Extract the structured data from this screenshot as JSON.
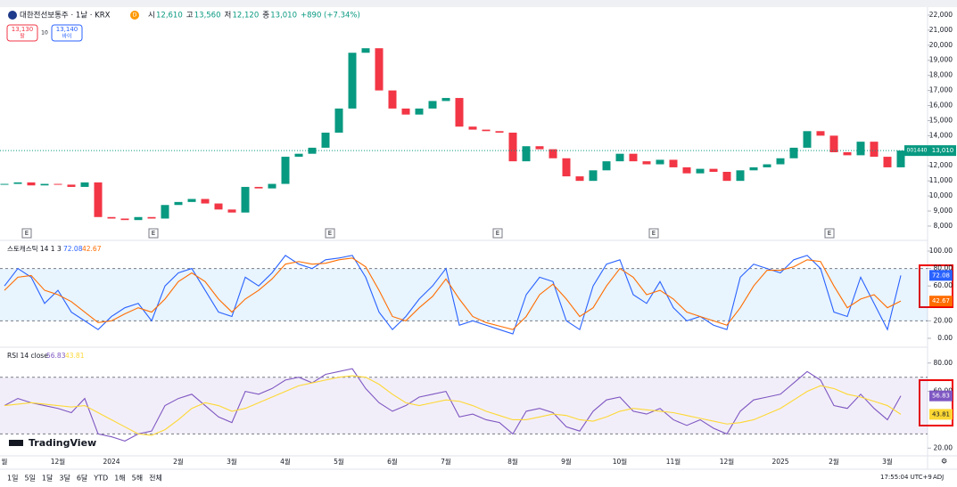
{
  "header": {
    "symbol": "대한전선보통주 · 1날 · KRX",
    "badge": "D",
    "ohlc": [
      {
        "label": "시",
        "value": "12,610"
      },
      {
        "label": "고",
        "value": "13,560"
      },
      {
        "label": "저",
        "value": "12,120"
      },
      {
        "label": "종",
        "value": "13,010"
      }
    ],
    "change": "+890 (+7.34%)",
    "sell": {
      "price": "13,130",
      "label": "팔"
    },
    "spread": "10",
    "buy": {
      "price": "13,140",
      "label": "바이"
    }
  },
  "chart_data": [
    {
      "type": "candlestick",
      "up_color": "#089981",
      "down_color": "#f23645",
      "categories": [
        "월",
        null,
        null,
        null,
        "12월",
        null,
        null,
        null,
        "2024",
        null,
        null,
        null,
        null,
        "2월",
        null,
        null,
        null,
        "3월",
        null,
        null,
        null,
        "4월",
        null,
        null,
        null,
        "5월",
        null,
        null,
        null,
        "6월",
        null,
        null,
        null,
        "7월",
        null,
        null,
        null,
        null,
        "8월",
        null,
        null,
        null,
        "9월",
        null,
        null,
        null,
        "10월",
        null,
        null,
        null,
        "11월",
        null,
        null,
        null,
        "12월",
        null,
        null,
        null,
        "2025",
        null,
        null,
        null,
        "2월",
        null,
        null,
        null,
        "3월",
        null
      ],
      "values": [
        10800,
        10900,
        10700,
        10800,
        10750,
        10600,
        10900,
        8600,
        8500,
        8400,
        8600,
        8500,
        9400,
        9600,
        9800,
        9500,
        9100,
        8900,
        10600,
        10500,
        10800,
        12600,
        12800,
        13200,
        14200,
        15800,
        19500,
        19800,
        17000,
        15800,
        15400,
        15800,
        16300,
        16500,
        14600,
        14400,
        14300,
        14200,
        12300,
        13300,
        13100,
        12500,
        11300,
        11000,
        11700,
        12300,
        12800,
        12300,
        12100,
        12400,
        11900,
        11500,
        11800,
        11600,
        11000,
        11700,
        11900,
        12100,
        12500,
        13200,
        14300,
        14000,
        12900,
        12700,
        13600,
        12600,
        11900,
        13010
      ],
      "ylim": [
        7170,
        22410
      ],
      "yticks": [
        {
          "value": 8000,
          "label": "8,000"
        },
        {
          "value": 9000,
          "label": "9,000"
        },
        {
          "value": 10000,
          "label": "10,000"
        },
        {
          "value": 11000,
          "label": "11,000"
        },
        {
          "value": 12000,
          "label": "12,000"
        },
        {
          "value": 13000,
          "label": "13,000"
        },
        {
          "value": 14000,
          "label": "14,000"
        },
        {
          "value": 15000,
          "label": "15,000"
        },
        {
          "value": 16000,
          "label": "16,000"
        },
        {
          "value": 17000,
          "label": "17,000"
        },
        {
          "value": 18000,
          "label": "18,000"
        },
        {
          "value": 19000,
          "label": "19,000"
        },
        {
          "value": 20000,
          "label": "20,000"
        },
        {
          "value": 21000,
          "label": "21,000"
        },
        {
          "value": 22000,
          "label": "22,000"
        }
      ],
      "last_price": {
        "value": 13010,
        "label": "13,010",
        "ticker": "001440"
      }
    },
    {
      "type": "line",
      "title": "스토캐스틱 14 1 3",
      "band_color": "#2196f3",
      "series": [
        {
          "color": "#2962ff",
          "values": [
            60,
            80,
            70,
            40,
            55,
            30,
            20,
            10,
            25,
            35,
            40,
            20,
            60,
            75,
            80,
            55,
            30,
            25,
            70,
            60,
            75,
            95,
            85,
            80,
            90,
            92,
            95,
            70,
            30,
            10,
            25,
            45,
            60,
            80,
            15,
            20,
            15,
            10,
            5,
            50,
            70,
            65,
            20,
            10,
            60,
            85,
            90,
            50,
            40,
            65,
            35,
            20,
            25,
            15,
            10,
            70,
            85,
            80,
            75,
            90,
            95,
            80,
            30,
            25,
            70,
            40,
            10,
            72.08
          ]
        },
        {
          "color": "#ff6d00",
          "values": [
            55,
            70,
            72,
            55,
            50,
            42,
            30,
            18,
            20,
            28,
            35,
            30,
            45,
            65,
            75,
            65,
            45,
            30,
            45,
            55,
            68,
            85,
            88,
            85,
            86,
            90,
            92,
            82,
            55,
            25,
            20,
            35,
            48,
            68,
            45,
            25,
            18,
            14,
            10,
            25,
            50,
            62,
            45,
            25,
            35,
            60,
            80,
            70,
            50,
            55,
            45,
            30,
            25,
            20,
            15,
            35,
            60,
            78,
            78,
            82,
            90,
            88,
            60,
            35,
            45,
            50,
            35,
            42.67
          ]
        }
      ],
      "ylim": [
        -8.2,
        110.2
      ],
      "bands": [
        20,
        80
      ],
      "yticks": [
        {
          "value": 0,
          "label": "0.00"
        },
        {
          "value": 20,
          "label": "20.00"
        },
        {
          "value": 60,
          "label": "60.00"
        },
        {
          "value": 80,
          "label": "80.00"
        },
        {
          "value": 100,
          "label": "100.00"
        }
      ]
    },
    {
      "type": "line",
      "title": "RSI 14 close",
      "band_color": "#7e57c2",
      "series": [
        {
          "color": "#7e57c2",
          "values": [
            50,
            55,
            52,
            50,
            48,
            45,
            55,
            30,
            28,
            25,
            30,
            32,
            50,
            55,
            58,
            50,
            42,
            38,
            60,
            58,
            62,
            68,
            70,
            66,
            72,
            74,
            76,
            62,
            52,
            46,
            50,
            56,
            58,
            60,
            42,
            44,
            40,
            38,
            30,
            46,
            48,
            45,
            35,
            32,
            46,
            54,
            56,
            46,
            44,
            48,
            40,
            36,
            40,
            34,
            30,
            46,
            54,
            56,
            58,
            66,
            74,
            68,
            50,
            48,
            58,
            48,
            40,
            56.83
          ]
        },
        {
          "color": "#fdd835",
          "values": [
            50,
            51,
            52,
            51,
            50,
            49,
            50,
            45,
            40,
            35,
            30,
            29,
            33,
            40,
            48,
            52,
            50,
            46,
            48,
            52,
            56,
            60,
            64,
            66,
            68,
            70,
            71,
            70,
            65,
            58,
            52,
            50,
            52,
            54,
            53,
            50,
            46,
            43,
            40,
            40,
            42,
            44,
            43,
            40,
            39,
            42,
            46,
            48,
            47,
            46,
            45,
            43,
            41,
            39,
            37,
            38,
            40,
            44,
            48,
            54,
            60,
            64,
            62,
            58,
            56,
            53,
            50,
            43.81
          ]
        }
      ],
      "ylim": [
        15.8,
        89.9
      ],
      "bands": [
        30,
        70
      ],
      "yticks": [
        {
          "value": 20,
          "label": "20.00"
        },
        {
          "value": 60,
          "label": "60.00"
        },
        {
          "value": 80,
          "label": "80.00"
        }
      ]
    }
  ],
  "footer": {
    "logo": "TradingView",
    "earnings": [
      "E",
      "E",
      "E",
      "E",
      "E",
      "E"
    ],
    "ranges": [
      "1일",
      "5일",
      "1달",
      "3달",
      "6달",
      "YTD",
      "1해",
      "5해",
      "전체"
    ],
    "time": "17:55:04 UTC+9",
    "adj": "ADJ"
  }
}
